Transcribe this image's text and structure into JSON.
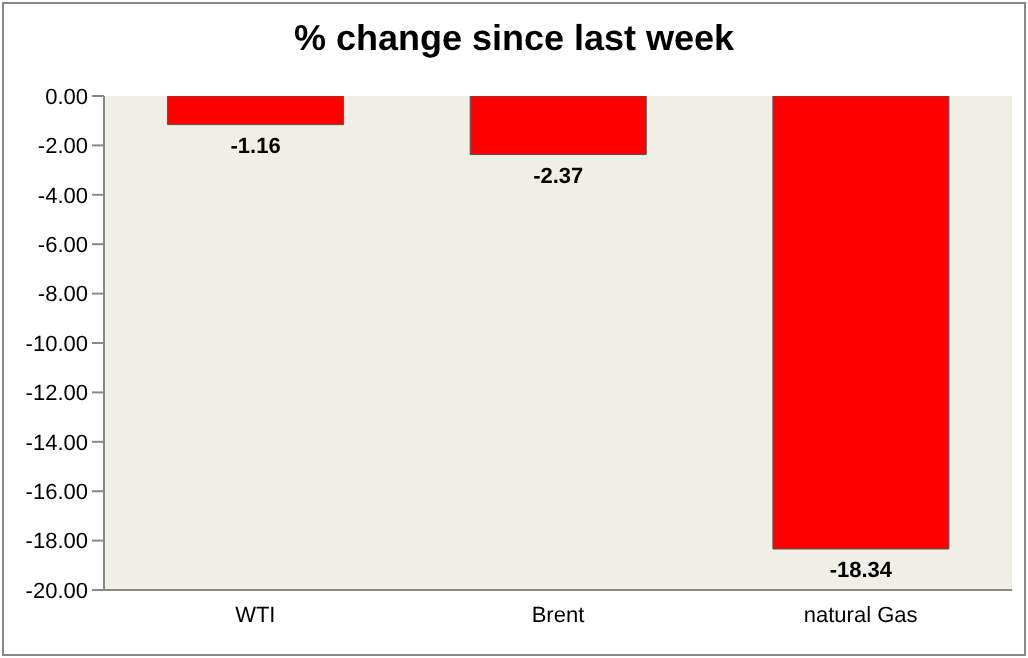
{
  "chart_data": {
    "type": "bar",
    "title": "% change since last week",
    "categories": [
      "WTI",
      "Brent",
      "natural Gas"
    ],
    "values": [
      -1.16,
      -2.37,
      -18.34
    ],
    "color": "#ff0000",
    "ylim": [
      -20,
      0
    ],
    "yticks": [
      {
        "value": 0,
        "label": "0.00"
      },
      {
        "value": -2,
        "label": "-2.00"
      },
      {
        "value": -4,
        "label": "-4.00"
      },
      {
        "value": -6,
        "label": "-6.00"
      },
      {
        "value": -8,
        "label": "-8.00"
      },
      {
        "value": -10,
        "label": "-10.00"
      },
      {
        "value": -12,
        "label": "-12.00"
      },
      {
        "value": -14,
        "label": "-14.00"
      },
      {
        "value": -16,
        "label": "-16.00"
      },
      {
        "value": -18,
        "label": "-18.00"
      },
      {
        "value": -20,
        "label": "-20.00"
      }
    ],
    "data_labels": true,
    "grid": false
  }
}
